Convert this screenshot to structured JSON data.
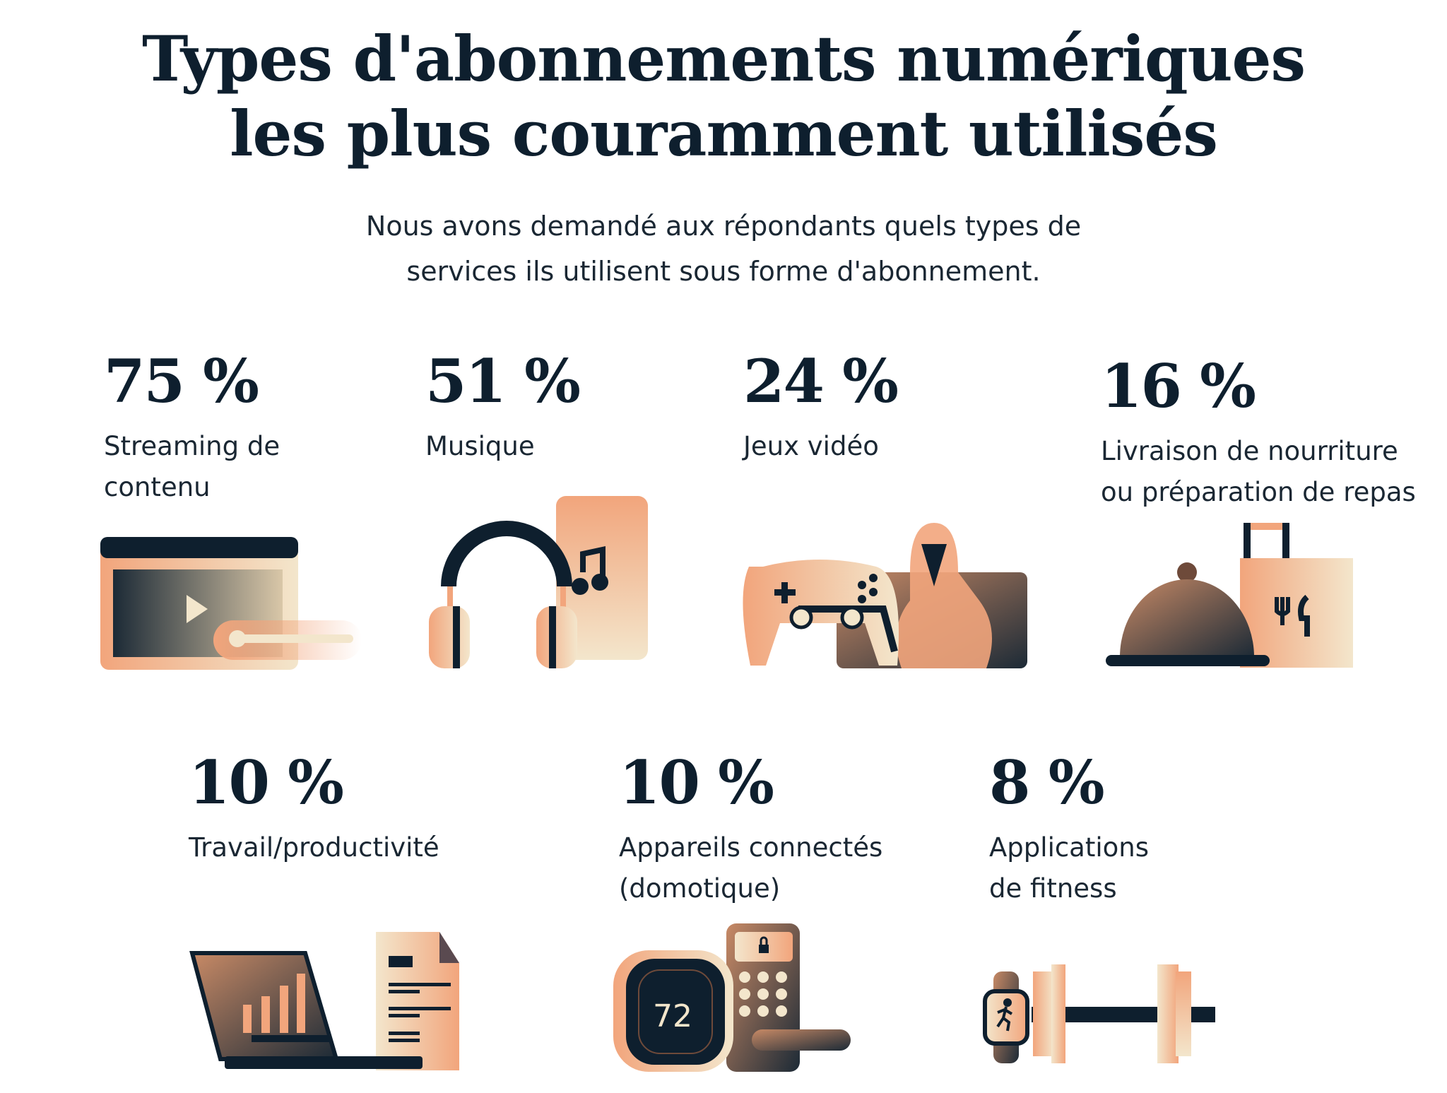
{
  "title": {
    "line1": "Types d'abonnements numériques",
    "line2": "les plus couramment utilisés"
  },
  "subtitle": {
    "line1": "Nous avons demandé aux répondants quels types de",
    "line2": "services ils utilisent sous forme d'abonnement."
  },
  "colors": {
    "navy": "#0e1f2e",
    "peach": "#f2a57c",
    "cream": "#f3e6cc",
    "brown": "#8a5a44"
  },
  "stats": [
    {
      "value": "75 %",
      "label": [
        "Streaming de",
        "contenu"
      ],
      "icon": "video-player-icon"
    },
    {
      "value": "51 %",
      "label": [
        "Musique"
      ],
      "icon": "headphones-icon"
    },
    {
      "value": "24 %",
      "label": [
        "Jeux vidéo"
      ],
      "icon": "game-controller-icon"
    },
    {
      "value": "16 %",
      "label": [
        "Livraison de nourriture",
        "ou préparation de repas"
      ],
      "icon": "food-delivery-icon"
    },
    {
      "value": "10 %",
      "label": [
        "Travail/productivité"
      ],
      "icon": "laptop-document-icon"
    },
    {
      "value": "10 %",
      "label": [
        "Appareils connectés",
        "(domotique)"
      ],
      "icon": "smart-home-icon",
      "thermostat_reading": "72"
    },
    {
      "value": "8 %",
      "label": [
        "Applications",
        "de fitness"
      ],
      "icon": "fitness-icon"
    }
  ]
}
